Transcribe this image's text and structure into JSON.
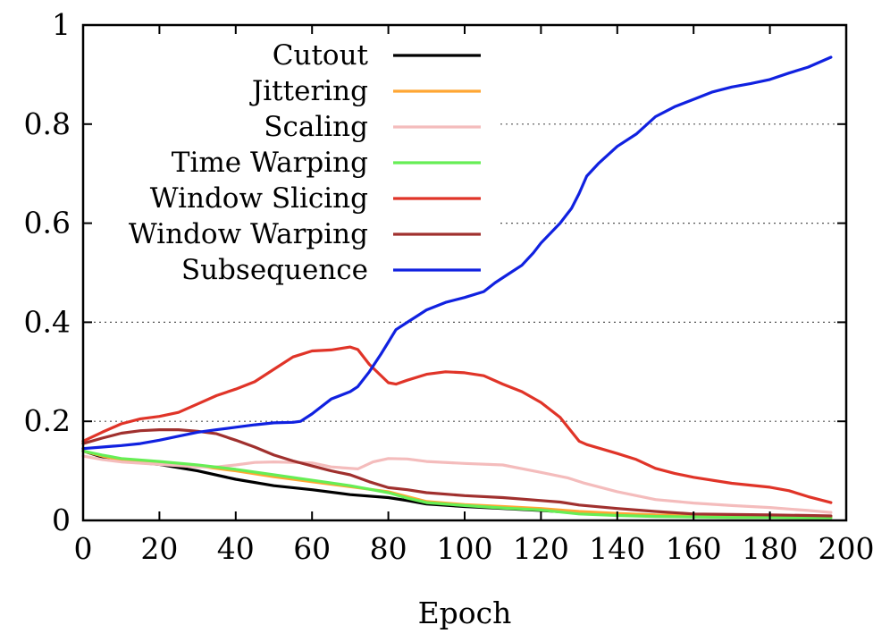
{
  "chart_data": {
    "type": "line",
    "title": "",
    "xlabel": "Epoch",
    "ylabel": "",
    "xlim": [
      0,
      200
    ],
    "ylim": [
      0,
      1
    ],
    "x_ticks": [
      0,
      20,
      40,
      60,
      80,
      100,
      120,
      140,
      160,
      180,
      200
    ],
    "y_ticks": [
      0,
      0.2,
      0.4,
      0.6,
      0.8,
      1
    ],
    "x_tick_labels": [
      "0",
      "20",
      "40",
      "60",
      "80",
      "100",
      "120",
      "140",
      "160",
      "180",
      "200"
    ],
    "y_tick_labels": [
      "0",
      "0.2",
      "0.4",
      "0.6",
      "0.8",
      "1"
    ],
    "grid": "horizontal dotted",
    "legend_position": "top-left",
    "series": [
      {
        "name": "Cutout",
        "color": "#000000",
        "points": [
          [
            0,
            0.14
          ],
          [
            5,
            0.128
          ],
          [
            10,
            0.12
          ],
          [
            20,
            0.113
          ],
          [
            30,
            0.1
          ],
          [
            40,
            0.083
          ],
          [
            50,
            0.07
          ],
          [
            60,
            0.062
          ],
          [
            70,
            0.052
          ],
          [
            80,
            0.046
          ],
          [
            85,
            0.04
          ],
          [
            90,
            0.033
          ],
          [
            100,
            0.028
          ],
          [
            110,
            0.024
          ],
          [
            120,
            0.02
          ],
          [
            130,
            0.015
          ],
          [
            140,
            0.012
          ],
          [
            150,
            0.01
          ],
          [
            160,
            0.009
          ],
          [
            170,
            0.008
          ],
          [
            180,
            0.008
          ],
          [
            190,
            0.007
          ],
          [
            196,
            0.007
          ]
        ]
      },
      {
        "name": "Jittering",
        "color": "#ffa633",
        "points": [
          [
            0,
            0.14
          ],
          [
            5,
            0.13
          ],
          [
            10,
            0.122
          ],
          [
            20,
            0.117
          ],
          [
            30,
            0.11
          ],
          [
            40,
            0.1
          ],
          [
            50,
            0.088
          ],
          [
            60,
            0.078
          ],
          [
            70,
            0.068
          ],
          [
            80,
            0.058
          ],
          [
            85,
            0.048
          ],
          [
            90,
            0.038
          ],
          [
            100,
            0.032
          ],
          [
            110,
            0.028
          ],
          [
            120,
            0.024
          ],
          [
            130,
            0.018
          ],
          [
            140,
            0.014
          ],
          [
            150,
            0.011
          ],
          [
            160,
            0.01
          ],
          [
            170,
            0.009
          ],
          [
            180,
            0.008
          ],
          [
            190,
            0.007
          ],
          [
            196,
            0.007
          ]
        ]
      },
      {
        "name": "Scaling",
        "color": "#f4bcbc",
        "points": [
          [
            0,
            0.13
          ],
          [
            5,
            0.123
          ],
          [
            10,
            0.118
          ],
          [
            20,
            0.113
          ],
          [
            30,
            0.108
          ],
          [
            35,
            0.108
          ],
          [
            40,
            0.112
          ],
          [
            45,
            0.117
          ],
          [
            50,
            0.118
          ],
          [
            60,
            0.116
          ],
          [
            65,
            0.108
          ],
          [
            72,
            0.104
          ],
          [
            76,
            0.118
          ],
          [
            80,
            0.125
          ],
          [
            85,
            0.124
          ],
          [
            90,
            0.119
          ],
          [
            100,
            0.115
          ],
          [
            110,
            0.112
          ],
          [
            120,
            0.097
          ],
          [
            127,
            0.086
          ],
          [
            131,
            0.076
          ],
          [
            140,
            0.058
          ],
          [
            150,
            0.042
          ],
          [
            160,
            0.035
          ],
          [
            170,
            0.03
          ],
          [
            180,
            0.026
          ],
          [
            190,
            0.02
          ],
          [
            196,
            0.016
          ]
        ]
      },
      {
        "name": "Time Warping",
        "color": "#66ee55",
        "points": [
          [
            0,
            0.14
          ],
          [
            5,
            0.132
          ],
          [
            10,
            0.125
          ],
          [
            20,
            0.119
          ],
          [
            30,
            0.112
          ],
          [
            40,
            0.103
          ],
          [
            50,
            0.092
          ],
          [
            60,
            0.081
          ],
          [
            70,
            0.07
          ],
          [
            80,
            0.056
          ],
          [
            85,
            0.045
          ],
          [
            90,
            0.036
          ],
          [
            100,
            0.03
          ],
          [
            110,
            0.025
          ],
          [
            120,
            0.021
          ],
          [
            130,
            0.013
          ],
          [
            140,
            0.01
          ],
          [
            150,
            0.008
          ],
          [
            160,
            0.007
          ],
          [
            170,
            0.006
          ],
          [
            180,
            0.006
          ],
          [
            190,
            0.005
          ],
          [
            196,
            0.005
          ]
        ]
      },
      {
        "name": "Window Slicing",
        "color": "#e03428",
        "points": [
          [
            0,
            0.16
          ],
          [
            5,
            0.178
          ],
          [
            10,
            0.195
          ],
          [
            15,
            0.205
          ],
          [
            20,
            0.21
          ],
          [
            25,
            0.218
          ],
          [
            30,
            0.235
          ],
          [
            35,
            0.252
          ],
          [
            40,
            0.265
          ],
          [
            45,
            0.28
          ],
          [
            50,
            0.305
          ],
          [
            55,
            0.33
          ],
          [
            60,
            0.342
          ],
          [
            65,
            0.344
          ],
          [
            70,
            0.35
          ],
          [
            72,
            0.345
          ],
          [
            75,
            0.315
          ],
          [
            80,
            0.278
          ],
          [
            82,
            0.275
          ],
          [
            85,
            0.283
          ],
          [
            90,
            0.295
          ],
          [
            95,
            0.3
          ],
          [
            100,
            0.298
          ],
          [
            105,
            0.292
          ],
          [
            110,
            0.275
          ],
          [
            115,
            0.26
          ],
          [
            120,
            0.238
          ],
          [
            125,
            0.208
          ],
          [
            130,
            0.16
          ],
          [
            132,
            0.153
          ],
          [
            140,
            0.135
          ],
          [
            145,
            0.123
          ],
          [
            150,
            0.105
          ],
          [
            155,
            0.095
          ],
          [
            160,
            0.087
          ],
          [
            170,
            0.075
          ],
          [
            180,
            0.067
          ],
          [
            185,
            0.06
          ],
          [
            190,
            0.048
          ],
          [
            196,
            0.036
          ]
        ]
      },
      {
        "name": "Window Warping",
        "color": "#a0302e",
        "points": [
          [
            0,
            0.155
          ],
          [
            5,
            0.166
          ],
          [
            10,
            0.176
          ],
          [
            15,
            0.181
          ],
          [
            20,
            0.183
          ],
          [
            25,
            0.183
          ],
          [
            30,
            0.18
          ],
          [
            35,
            0.175
          ],
          [
            40,
            0.162
          ],
          [
            45,
            0.148
          ],
          [
            50,
            0.132
          ],
          [
            55,
            0.12
          ],
          [
            60,
            0.11
          ],
          [
            65,
            0.1
          ],
          [
            70,
            0.092
          ],
          [
            75,
            0.078
          ],
          [
            80,
            0.066
          ],
          [
            85,
            0.062
          ],
          [
            90,
            0.056
          ],
          [
            100,
            0.05
          ],
          [
            110,
            0.046
          ],
          [
            120,
            0.04
          ],
          [
            125,
            0.037
          ],
          [
            130,
            0.031
          ],
          [
            140,
            0.024
          ],
          [
            150,
            0.018
          ],
          [
            160,
            0.013
          ],
          [
            170,
            0.012
          ],
          [
            180,
            0.011
          ],
          [
            190,
            0.01
          ],
          [
            196,
            0.009
          ]
        ]
      },
      {
        "name": "Subsequence",
        "color": "#1021e0",
        "points": [
          [
            0,
            0.145
          ],
          [
            5,
            0.148
          ],
          [
            10,
            0.151
          ],
          [
            15,
            0.155
          ],
          [
            20,
            0.162
          ],
          [
            25,
            0.17
          ],
          [
            30,
            0.178
          ],
          [
            35,
            0.183
          ],
          [
            40,
            0.188
          ],
          [
            45,
            0.193
          ],
          [
            50,
            0.197
          ],
          [
            55,
            0.198
          ],
          [
            57,
            0.2
          ],
          [
            60,
            0.215
          ],
          [
            65,
            0.245
          ],
          [
            70,
            0.26
          ],
          [
            72,
            0.27
          ],
          [
            75,
            0.3
          ],
          [
            78,
            0.335
          ],
          [
            80,
            0.36
          ],
          [
            82,
            0.385
          ],
          [
            85,
            0.4
          ],
          [
            88,
            0.415
          ],
          [
            90,
            0.425
          ],
          [
            95,
            0.44
          ],
          [
            100,
            0.45
          ],
          [
            105,
            0.462
          ],
          [
            108,
            0.48
          ],
          [
            112,
            0.5
          ],
          [
            115,
            0.515
          ],
          [
            118,
            0.54
          ],
          [
            120,
            0.56
          ],
          [
            125,
            0.6
          ],
          [
            128,
            0.63
          ],
          [
            130,
            0.66
          ],
          [
            132,
            0.695
          ],
          [
            135,
            0.72
          ],
          [
            140,
            0.755
          ],
          [
            145,
            0.78
          ],
          [
            150,
            0.815
          ],
          [
            155,
            0.835
          ],
          [
            160,
            0.85
          ],
          [
            165,
            0.865
          ],
          [
            170,
            0.875
          ],
          [
            175,
            0.882
          ],
          [
            180,
            0.89
          ],
          [
            185,
            0.903
          ],
          [
            190,
            0.915
          ],
          [
            196,
            0.935
          ]
        ]
      }
    ]
  }
}
